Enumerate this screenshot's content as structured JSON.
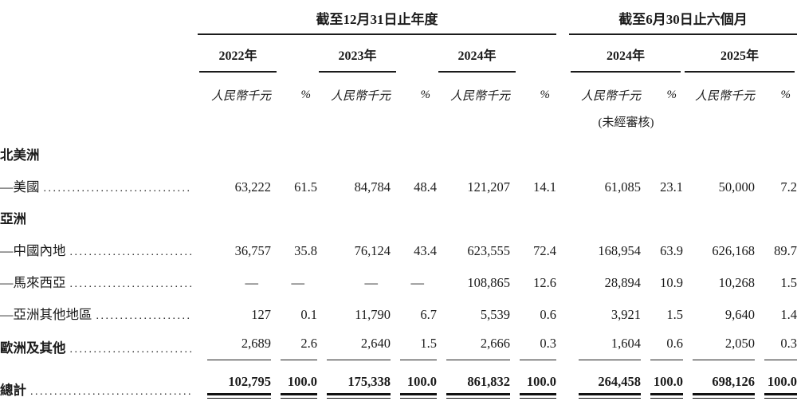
{
  "table": {
    "period_groups": [
      {
        "title": "截至12月31日止年度",
        "years": [
          "2022年",
          "2023年",
          "2024年"
        ]
      },
      {
        "title": "截至6月30日止六個月",
        "years": [
          "2024年",
          "2025年"
        ]
      }
    ],
    "unit_header": {
      "amount": "人民幣千元",
      "percent": "%"
    },
    "unaudited_note": "(未經審核)",
    "rows": [
      {
        "label": "北美洲",
        "type": "section"
      },
      {
        "label": "—美國",
        "type": "data",
        "values": [
          "63,222",
          "61.5",
          "84,784",
          "48.4",
          "121,207",
          "14.1",
          "61,085",
          "23.1",
          "50,000",
          "7.2"
        ]
      },
      {
        "label": "亞洲",
        "type": "section"
      },
      {
        "label": "—中國內地",
        "type": "data",
        "values": [
          "36,757",
          "35.8",
          "76,124",
          "43.4",
          "623,555",
          "72.4",
          "168,954",
          "63.9",
          "626,168",
          "89.7"
        ]
      },
      {
        "label": "—馬來西亞",
        "type": "data",
        "values": [
          "—",
          "—",
          "—",
          "—",
          "108,865",
          "12.6",
          "28,894",
          "10.9",
          "10,268",
          "1.5"
        ]
      },
      {
        "label": "—亞洲其他地區",
        "type": "data",
        "values": [
          "127",
          "0.1",
          "11,790",
          "6.7",
          "5,539",
          "0.6",
          "3,921",
          "1.5",
          "9,640",
          "1.4"
        ]
      },
      {
        "label": "歐洲及其他",
        "type": "data",
        "bold_label": true,
        "underline": true,
        "values": [
          "2,689",
          "2.6",
          "2,640",
          "1.5",
          "2,666",
          "0.3",
          "1,604",
          "0.6",
          "2,050",
          "0.3"
        ]
      },
      {
        "label": "總計",
        "type": "total",
        "values": [
          "102,795",
          "100.0",
          "175,338",
          "100.0",
          "861,832",
          "100.0",
          "264,458",
          "100.0",
          "698,126",
          "100.0"
        ]
      }
    ]
  }
}
